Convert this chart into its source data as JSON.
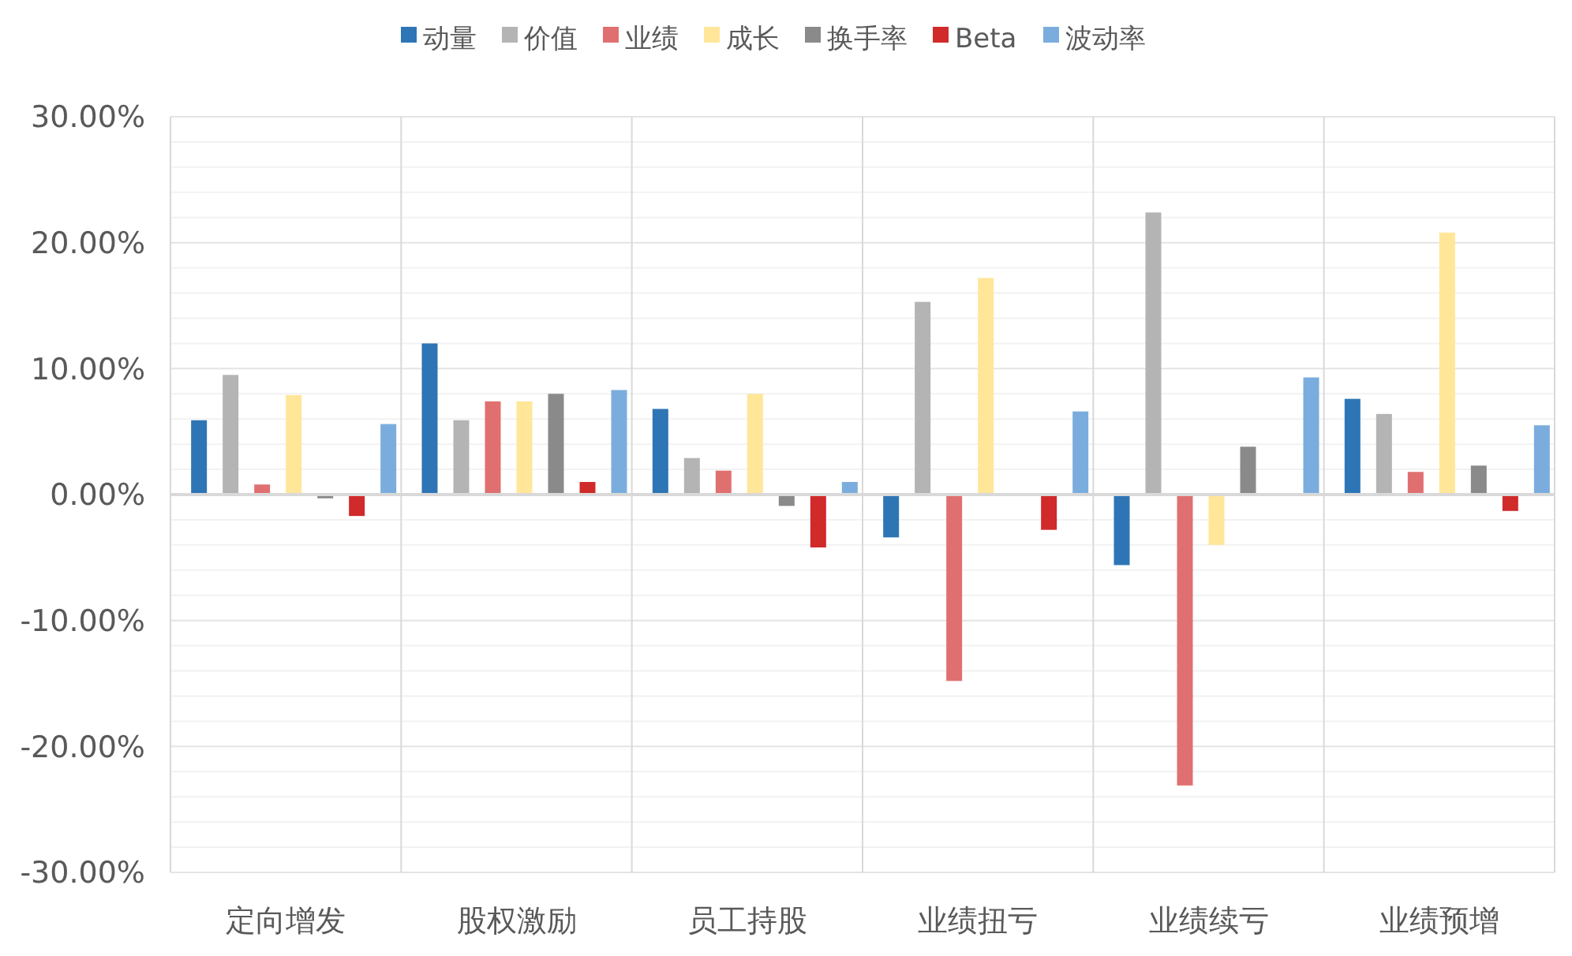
{
  "chart_data": {
    "type": "bar",
    "categories": [
      "定向增发",
      "股权激励",
      "员工持股",
      "业绩扭亏",
      "业绩续亏",
      "业绩预增"
    ],
    "series": [
      {
        "name": "动量",
        "color": "#2e75b6",
        "values": [
          5.9,
          12.0,
          6.8,
          -3.4,
          -5.6,
          7.6
        ]
      },
      {
        "name": "价值",
        "color": "#b4b4b4",
        "values": [
          9.5,
          5.9,
          2.9,
          15.3,
          22.4,
          6.4
        ]
      },
      {
        "name": "业绩",
        "color": "#e07070",
        "values": [
          0.8,
          7.4,
          1.9,
          -14.8,
          -23.1,
          1.8
        ]
      },
      {
        "name": "成长",
        "color": "#ffe699",
        "values": [
          7.9,
          7.4,
          8.0,
          17.2,
          -4.0,
          20.8
        ]
      },
      {
        "name": "换手率",
        "color": "#8a8a8a",
        "values": [
          -0.3,
          8.0,
          -0.9,
          null,
          3.8,
          2.3
        ]
      },
      {
        "name": "Beta",
        "color": "#d02a2a",
        "values": [
          -1.7,
          1.0,
          -4.2,
          -2.8,
          null,
          -1.3
        ]
      },
      {
        "name": "波动率",
        "color": "#7aaddd",
        "values": [
          5.6,
          8.3,
          1.0,
          6.6,
          9.3,
          5.5
        ]
      }
    ],
    "ylim": [
      -30,
      30
    ],
    "yticks": [
      {
        "value": -30,
        "label": "-30.00%"
      },
      {
        "value": -28,
        "label": null
      },
      {
        "value": -26,
        "label": null
      },
      {
        "value": -24,
        "label": null
      },
      {
        "value": -22,
        "label": null
      },
      {
        "value": -20,
        "label": "-20.00%"
      },
      {
        "value": -18,
        "label": null
      },
      {
        "value": -16,
        "label": null
      },
      {
        "value": -14,
        "label": null
      },
      {
        "value": -12,
        "label": null
      },
      {
        "value": -10,
        "label": "-10.00%"
      },
      {
        "value": -8,
        "label": null
      },
      {
        "value": -6,
        "label": null
      },
      {
        "value": -4,
        "label": null
      },
      {
        "value": -2,
        "label": null
      },
      {
        "value": 0,
        "label": "0.00%"
      },
      {
        "value": 2,
        "label": null
      },
      {
        "value": 4,
        "label": null
      },
      {
        "value": 6,
        "label": null
      },
      {
        "value": 8,
        "label": null
      },
      {
        "value": 10,
        "label": "10.00%"
      },
      {
        "value": 12,
        "label": null
      },
      {
        "value": 14,
        "label": null
      },
      {
        "value": 16,
        "label": null
      },
      {
        "value": 18,
        "label": null
      },
      {
        "value": 20,
        "label": "20.00%"
      },
      {
        "value": 22,
        "label": null
      },
      {
        "value": 24,
        "label": null
      },
      {
        "value": 26,
        "label": null
      },
      {
        "value": 28,
        "label": null
      },
      {
        "value": 30,
        "label": "30.00%"
      }
    ],
    "grid": true,
    "legend": "top"
  }
}
